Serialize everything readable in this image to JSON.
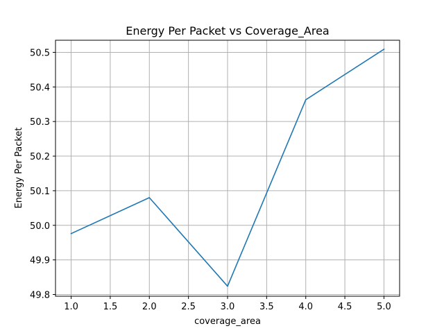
{
  "chart_data": {
    "type": "line",
    "title": "Energy Per Packet vs Coverage_Area",
    "xlabel": "coverage_area",
    "ylabel": "Energy Per Packet",
    "xlim": [
      0.8,
      5.2
    ],
    "ylim": [
      49.795,
      50.535
    ],
    "xticks": [
      1.0,
      1.5,
      2.0,
      2.5,
      3.0,
      3.5,
      4.0,
      4.5,
      5.0
    ],
    "xtick_labels": [
      "1.0",
      "1.5",
      "2.0",
      "2.5",
      "3.0",
      "3.5",
      "4.0",
      "4.5",
      "5.0"
    ],
    "yticks": [
      49.8,
      49.9,
      50.0,
      50.1,
      50.2,
      50.3,
      50.4,
      50.5
    ],
    "ytick_labels": [
      "49.8",
      "49.9",
      "50.0",
      "50.1",
      "50.2",
      "50.3",
      "50.4",
      "50.5"
    ],
    "grid": true,
    "series": [
      {
        "color": "#1f77b4",
        "x": [
          1.0,
          2.0,
          3.0,
          4.0,
          5.0
        ],
        "y": [
          49.976,
          50.08,
          49.824,
          50.363,
          50.509
        ]
      }
    ]
  }
}
